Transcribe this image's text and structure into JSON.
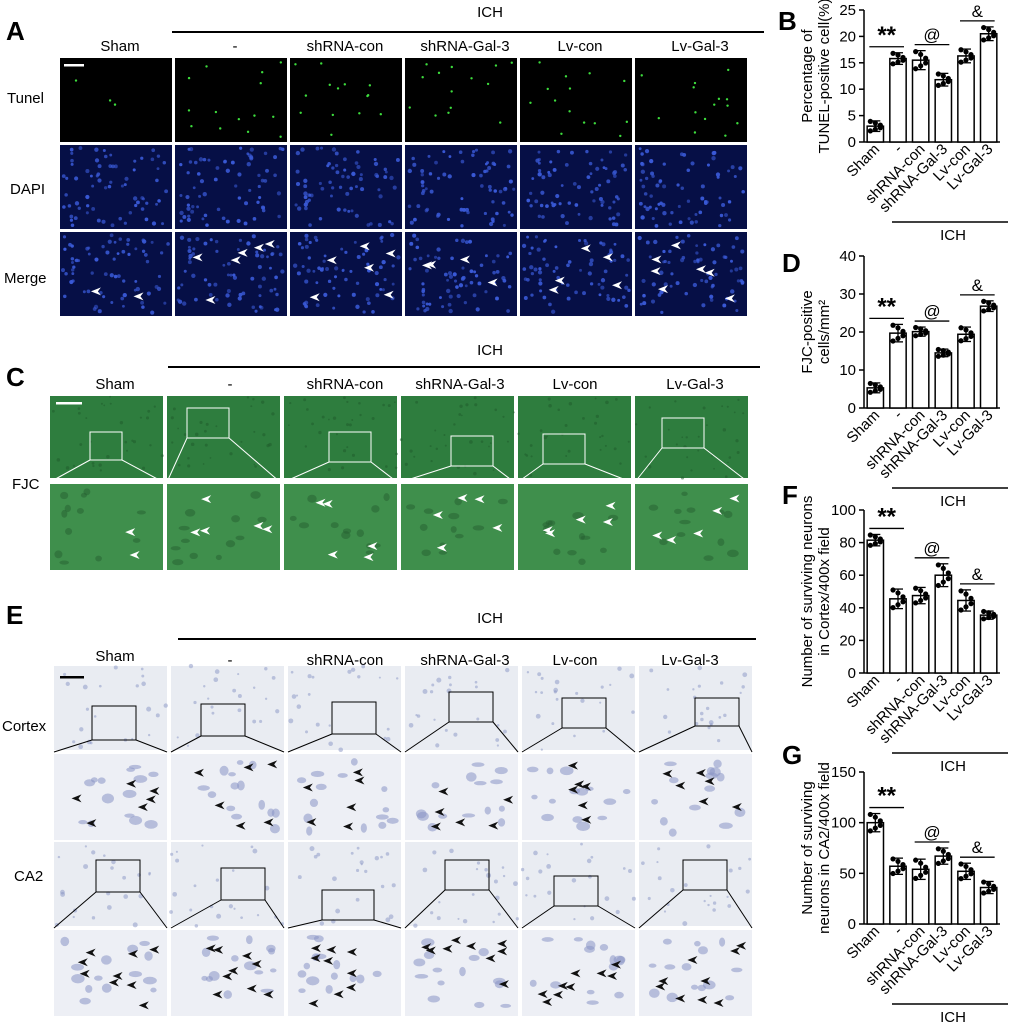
{
  "figure": {
    "panel_letters": {
      "A": "A",
      "B": "B",
      "C": "C",
      "D": "D",
      "E": "E",
      "F": "F",
      "G": "G"
    },
    "group_label": "ICH",
    "columns": [
      "Sham",
      "-",
      "shRNA-con",
      "shRNA-Gal-3",
      "Lv-con",
      "Lv-Gal-3"
    ],
    "panelA": {
      "rows": [
        "Tunel",
        "DAPI",
        "Merge"
      ]
    },
    "panelC": {
      "row": "FJC"
    },
    "panelE": {
      "rows": [
        "Cortex",
        "CA2"
      ]
    }
  },
  "colors": {
    "tunel_bg": "#000000",
    "tunel_dot": "#3ddc3d",
    "dapi_bg": "#060f46",
    "dapi_dot": "#3a5ad8",
    "fjc_bg": "#2e7d3e",
    "fjc_zoom_bg": "#3f8f4c",
    "nissl_bg": "#e9ecf2",
    "nissl_cell": "#8893c4"
  },
  "chart_data": [
    {
      "id": "B",
      "type": "bar",
      "categories": [
        "Sham",
        "-",
        "shRNA-con",
        "shRNA-Gal-3",
        "Lv-con",
        "Lv-Gal-3"
      ],
      "values": [
        3.0,
        15.8,
        15.5,
        11.8,
        16.3,
        20.5
      ],
      "errors": [
        1.0,
        1.1,
        1.8,
        1.2,
        1.3,
        1.3
      ],
      "ylabel": "Percentage of\nTUNEL-positive cell(%)",
      "ylim": [
        0,
        25
      ],
      "yticks": [
        0,
        5,
        10,
        15,
        20,
        25
      ],
      "group_label": "ICH",
      "annotations": [
        {
          "text": "**",
          "from": 0,
          "to": 1
        },
        {
          "text": "@",
          "from": 2,
          "to": 3
        },
        {
          "text": "&",
          "from": 4,
          "to": 5
        }
      ]
    },
    {
      "id": "D",
      "type": "bar",
      "categories": [
        "Sham",
        "-",
        "shRNA-con",
        "shRNA-Gal-3",
        "Lv-con",
        "Lv-Gal-3"
      ],
      "values": [
        5.3,
        19.7,
        20.1,
        14.5,
        19.4,
        26.8
      ],
      "errors": [
        1.3,
        2.3,
        1.2,
        1.0,
        1.9,
        1.4
      ],
      "ylabel": "FJC-positive\ncells/mm²",
      "ylim": [
        0,
        40
      ],
      "yticks": [
        0,
        10,
        20,
        30,
        40
      ],
      "group_label": "ICH",
      "annotations": [
        {
          "text": "**",
          "from": 0,
          "to": 1
        },
        {
          "text": "@",
          "from": 2,
          "to": 3
        },
        {
          "text": "&",
          "from": 4,
          "to": 5
        }
      ]
    },
    {
      "id": "F",
      "type": "bar",
      "categories": [
        "Sham",
        "-",
        "shRNA-con",
        "shRNA-Gal-3",
        "Lv-con",
        "Lv-Gal-3"
      ],
      "values": [
        81.5,
        45.5,
        47.5,
        60.0,
        44.5,
        35.5
      ],
      "errors": [
        3.5,
        6.0,
        5.0,
        7.0,
        6.5,
        2.5
      ],
      "ylabel": "Number of surviving neurons\nin Cortex/400x field",
      "ylim": [
        0,
        100
      ],
      "yticks": [
        0,
        20,
        40,
        60,
        80,
        100
      ],
      "group_label": "ICH",
      "annotations": [
        {
          "text": "**",
          "from": 0,
          "to": 1
        },
        {
          "text": "@",
          "from": 2,
          "to": 3
        },
        {
          "text": "&",
          "from": 4,
          "to": 5
        }
      ]
    },
    {
      "id": "G",
      "type": "bar",
      "categories": [
        "Sham",
        "-",
        "shRNA-con",
        "shRNA-Gal-3",
        "Lv-con",
        "Lv-Gal-3"
      ],
      "values": [
        100,
        57,
        54,
        67,
        52,
        36
      ],
      "errors": [
        9,
        8,
        10,
        8,
        8,
        6
      ],
      "ylabel": "Number of surviving\nneurons in CA2/400x field",
      "ylim": [
        0,
        150
      ],
      "yticks": [
        0,
        50,
        100,
        150
      ],
      "group_label": "ICH",
      "annotations": [
        {
          "text": "**",
          "from": 0,
          "to": 1
        },
        {
          "text": "@",
          "from": 2,
          "to": 3
        },
        {
          "text": "&",
          "from": 4,
          "to": 5
        }
      ]
    }
  ]
}
